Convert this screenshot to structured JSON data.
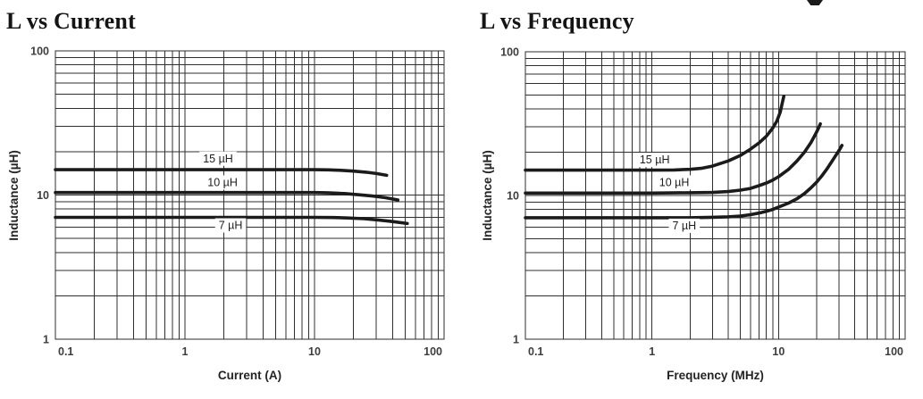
{
  "page": {
    "background": "#ffffff"
  },
  "chart_data": [
    {
      "type": "line",
      "title": "L vs Current",
      "xlabel": "Current (A)",
      "ylabel": "Inductance (µH)",
      "xscale": "log",
      "yscale": "log",
      "xlim": [
        0.1,
        100
      ],
      "ylim": [
        1,
        100
      ],
      "grid": "full log-log minor grid on",
      "legend_position": "inline labels on curves",
      "line_color": "#1b1b1b",
      "x_ticks": [
        {
          "v": 0.1,
          "label": "0.1"
        },
        {
          "v": 1,
          "label": "1"
        },
        {
          "v": 10,
          "label": "10"
        },
        {
          "v": 100,
          "label": "100"
        }
      ],
      "y_ticks": [
        {
          "v": 100,
          "label": "100"
        },
        {
          "v": 10,
          "label": "10"
        },
        {
          "v": 1,
          "label": "1"
        }
      ],
      "series": [
        {
          "name": "15 µH",
          "label_pos": [
            1.8,
            18.0
          ],
          "points": [
            [
              0.1,
              15
            ],
            [
              0.5,
              15
            ],
            [
              1,
              15
            ],
            [
              2,
              15
            ],
            [
              4,
              15
            ],
            [
              7,
              15
            ],
            [
              10,
              15
            ],
            [
              13,
              14.95
            ],
            [
              16,
              14.85
            ],
            [
              20,
              14.65
            ],
            [
              25,
              14.4
            ],
            [
              30,
              14.1
            ],
            [
              36,
              13.7
            ]
          ]
        },
        {
          "name": "10 µH",
          "label_pos": [
            1.95,
            12.3
          ],
          "points": [
            [
              0.1,
              10.4
            ],
            [
              0.5,
              10.4
            ],
            [
              1,
              10.4
            ],
            [
              2,
              10.4
            ],
            [
              5,
              10.4
            ],
            [
              10,
              10.4
            ],
            [
              13,
              10.35
            ],
            [
              17,
              10.25
            ],
            [
              22,
              10.05
            ],
            [
              28,
              9.85
            ],
            [
              35,
              9.6
            ],
            [
              44,
              9.25
            ]
          ]
        },
        {
          "name": "7 µH",
          "label_pos": [
            2.25,
            6.2
          ],
          "points": [
            [
              0.1,
              7
            ],
            [
              0.5,
              7
            ],
            [
              1,
              7
            ],
            [
              2,
              7
            ],
            [
              5,
              7
            ],
            [
              10,
              7
            ],
            [
              14,
              6.98
            ],
            [
              18,
              6.93
            ],
            [
              24,
              6.85
            ],
            [
              31,
              6.72
            ],
            [
              40,
              6.55
            ],
            [
              52,
              6.35
            ]
          ]
        }
      ]
    },
    {
      "type": "line",
      "title": "L vs Frequency",
      "xlabel": "Frequency (MHz)",
      "ylabel": "Inductance (µH)",
      "xscale": "log",
      "yscale": "log",
      "xlim": [
        0.1,
        100
      ],
      "ylim": [
        1,
        100
      ],
      "grid": "full log-log minor grid on",
      "legend_position": "inline labels on curves",
      "line_color": "#1b1b1b",
      "x_ticks": [
        {
          "v": 0.1,
          "label": "0.1"
        },
        {
          "v": 1,
          "label": "1"
        },
        {
          "v": 10,
          "label": "10"
        },
        {
          "v": 100,
          "label": "100"
        }
      ],
      "y_ticks": [
        {
          "v": 100,
          "label": "100"
        },
        {
          "v": 10,
          "label": "10"
        },
        {
          "v": 1,
          "label": "1"
        }
      ],
      "series": [
        {
          "name": "15 µH",
          "label_pos": [
            1.05,
            17.8
          ],
          "points": [
            [
              0.1,
              15
            ],
            [
              0.5,
              15
            ],
            [
              1,
              15
            ],
            [
              1.5,
              15.05
            ],
            [
              2,
              15.2
            ],
            [
              2.5,
              15.5
            ],
            [
              3,
              16
            ],
            [
              4,
              17.4
            ],
            [
              5,
              19
            ],
            [
              6,
              21
            ],
            [
              7,
              23.2
            ],
            [
              8,
              25.8
            ],
            [
              9,
              29.5
            ],
            [
              9.7,
              33
            ],
            [
              10.3,
              38
            ],
            [
              10.7,
              44
            ],
            [
              11,
              49
            ]
          ]
        },
        {
          "name": "10 µH",
          "label_pos": [
            1.5,
            12.4
          ],
          "points": [
            [
              0.1,
              10.4
            ],
            [
              0.5,
              10.4
            ],
            [
              1,
              10.4
            ],
            [
              2,
              10.45
            ],
            [
              3,
              10.5
            ],
            [
              4,
              10.65
            ],
            [
              5,
              10.9
            ],
            [
              6,
              11.2
            ],
            [
              7,
              11.7
            ],
            [
              8,
              12.2
            ],
            [
              9,
              12.8
            ],
            [
              10,
              13.5
            ],
            [
              12,
              15.2
            ],
            [
              14,
              17.4
            ],
            [
              16,
              20
            ],
            [
              18,
              23.3
            ],
            [
              19.5,
              26.5
            ],
            [
              20.7,
              29.5
            ],
            [
              21.4,
              31.5
            ]
          ]
        },
        {
          "name": "7 µH",
          "label_pos": [
            1.8,
            6.2
          ],
          "points": [
            [
              0.1,
              7
            ],
            [
              0.5,
              7
            ],
            [
              1,
              7
            ],
            [
              2,
              7
            ],
            [
              3,
              7.05
            ],
            [
              4,
              7.1
            ],
            [
              5,
              7.2
            ],
            [
              6,
              7.35
            ],
            [
              7,
              7.55
            ],
            [
              8,
              7.75
            ],
            [
              9,
              8
            ],
            [
              10,
              8.3
            ],
            [
              12,
              8.85
            ],
            [
              14,
              9.5
            ],
            [
              16,
              10.3
            ],
            [
              18,
              11.3
            ],
            [
              20,
              12.4
            ],
            [
              22,
              13.7
            ],
            [
              24,
              15.2
            ],
            [
              26,
              16.9
            ],
            [
              28,
              18.7
            ],
            [
              30,
              20.5
            ],
            [
              31.7,
              22.3
            ]
          ]
        }
      ]
    }
  ]
}
